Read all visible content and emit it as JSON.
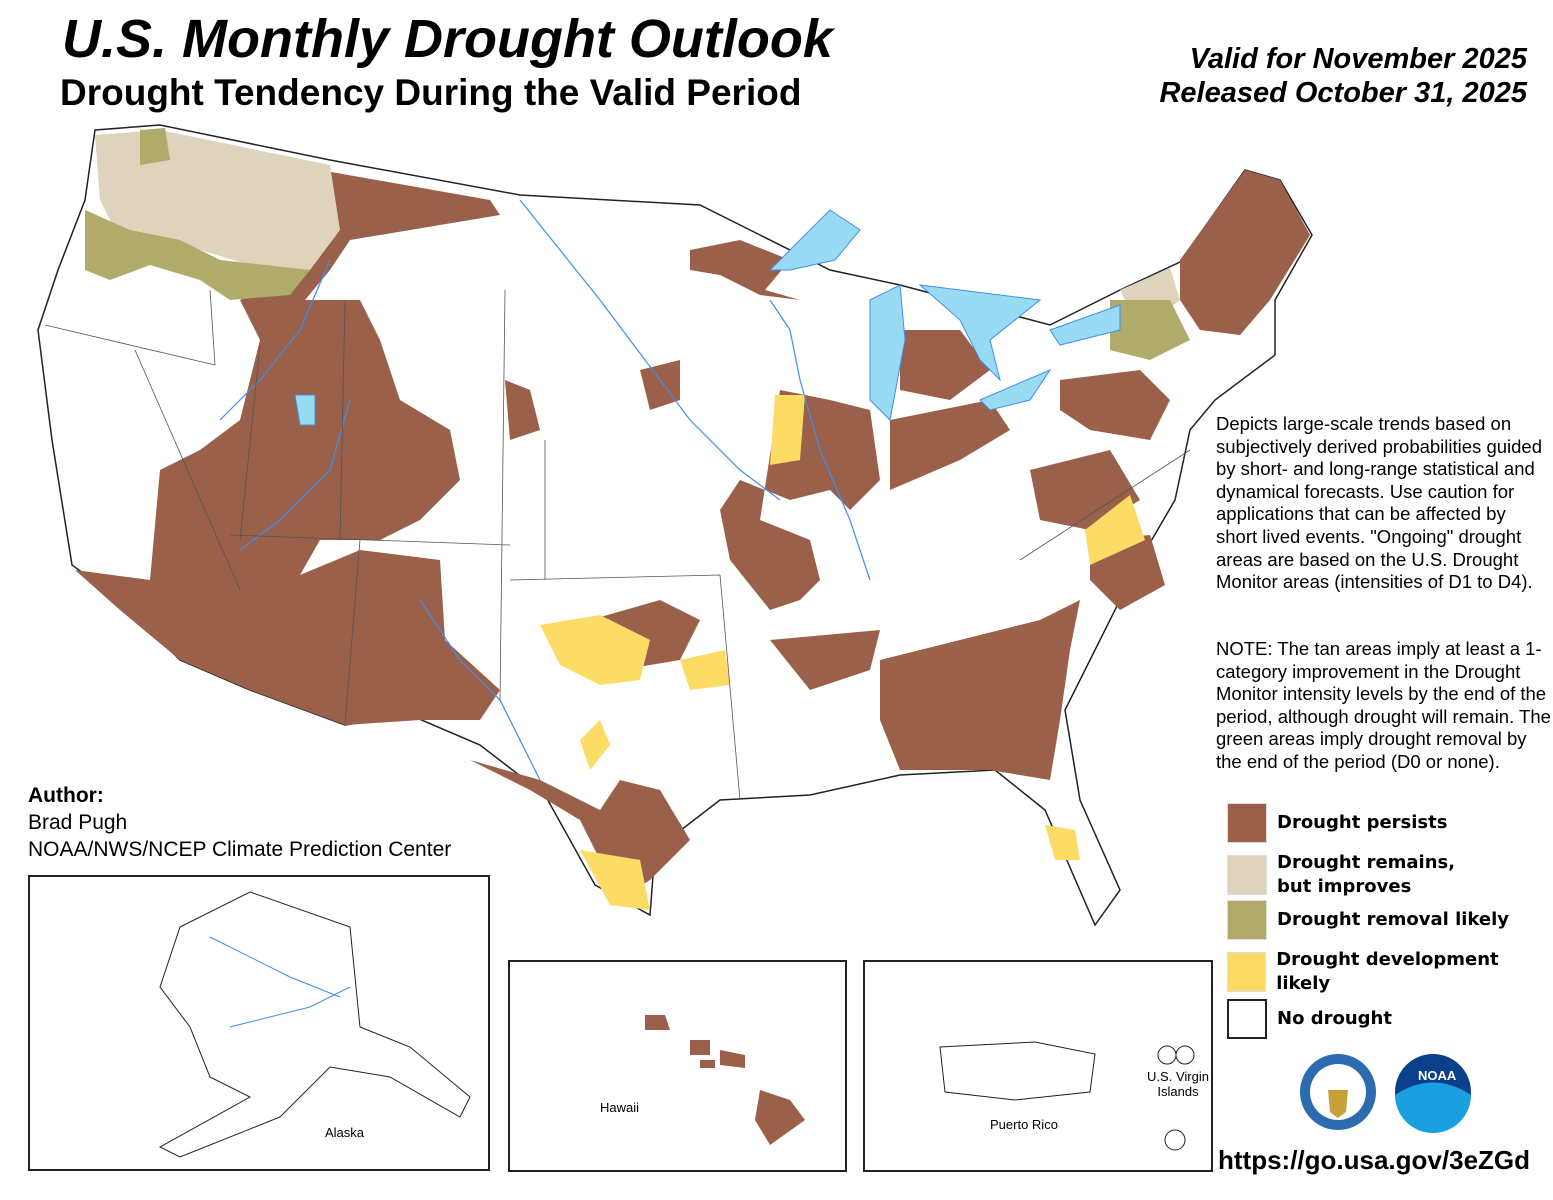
{
  "header": {
    "title": "U.S. Monthly Drought Outlook",
    "subtitle": "Drought Tendency During the Valid Period",
    "valid": "Valid for November 2025",
    "released": "Released October 31, 2025"
  },
  "description": "Depicts large-scale trends based on subjectively derived probabilities guided by short- and long-range statistical and dynamical forecasts. Use caution for applications that can be affected by short lived events. \"Ongoing\" drought areas are based on the U.S. Drought Monitor areas (intensities of D1 to D4).",
  "note": "NOTE: The tan areas imply at least a 1-category improvement in the Drought Monitor intensity levels by the end of the period, although drought will remain. The green areas imply drought removal by the end of the period (D0 or none).",
  "author": {
    "label": "Author:",
    "name": "Brad Pugh",
    "org": "NOAA/NWS/NCEP Climate Prediction Center"
  },
  "legend": [
    {
      "label": "Drought persists",
      "color": "#9a6049"
    },
    {
      "label": "Drought remains,",
      "label2": "but improves",
      "color": "#ded3bd"
    },
    {
      "label": "Drought removal likely",
      "color": "#b0ab6b"
    },
    {
      "label": "Drought development likely",
      "color": "#fddc66"
    },
    {
      "label": "No drought",
      "color": "#ffffff"
    }
  ],
  "insets": {
    "alaska": "Alaska",
    "hawaii": "Hawaii",
    "puerto_rico": "Puerto Rico",
    "usvi": "U.S. Virgin Islands"
  },
  "url": "https://go.usa.gov/3eZGd",
  "colors": {
    "water": "#99dbf2",
    "river": "#3d8ef0"
  }
}
